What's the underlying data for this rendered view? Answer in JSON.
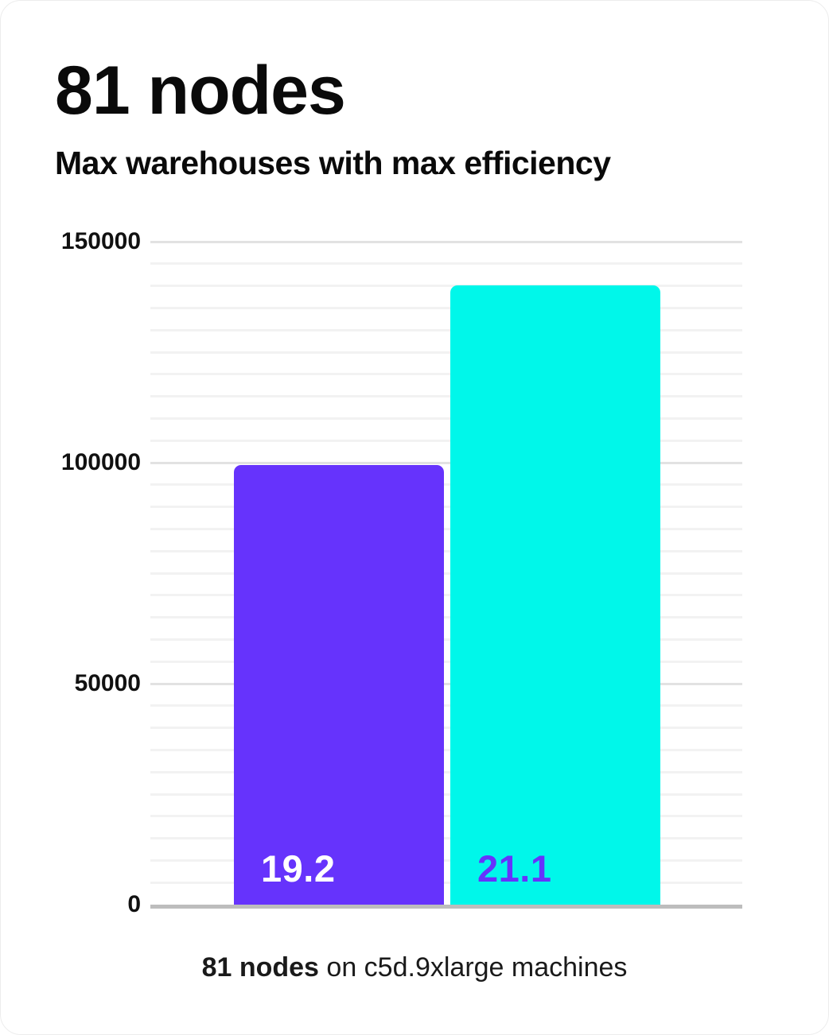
{
  "header": {
    "title": "81 nodes",
    "subtitle": "Max warehouses with max efficiency"
  },
  "caption": {
    "bold": "81 nodes",
    "rest": " on c5d.9xlarge machines"
  },
  "colors": {
    "text": "#0a0a0a",
    "bar1": "#6633fc",
    "bar2": "#00f7ea",
    "bar1_label": "#ffffff",
    "bar2_label": "#6633fc",
    "grid_minor": "#f2f2f2",
    "grid_major": "#e2e2e2",
    "baseline": "#bdbdbd"
  },
  "chart_data": {
    "type": "bar",
    "title": "81 nodes",
    "subtitle": "Max warehouses with max efficiency",
    "caption": "81 nodes on c5d.9xlarge machines",
    "bars": [
      {
        "data_label": "19.2",
        "value": 99500,
        "color": "#6633fc",
        "data_label_color": "#ffffff"
      },
      {
        "data_label": "21.1",
        "value": 140200,
        "color": "#00f7ea",
        "data_label_color": "#6633fc"
      }
    ],
    "xlabel": "",
    "ylabel": "",
    "ylim": [
      0,
      150000
    ],
    "y_major_ticks": [
      {
        "value": 0,
        "label": "0"
      },
      {
        "value": 50000,
        "label": "50000"
      },
      {
        "value": 100000,
        "label": "100000"
      },
      {
        "value": 150000,
        "label": "150000"
      }
    ],
    "y_minor_step": 5000,
    "grid": "horizontal",
    "legend_position": "none"
  }
}
